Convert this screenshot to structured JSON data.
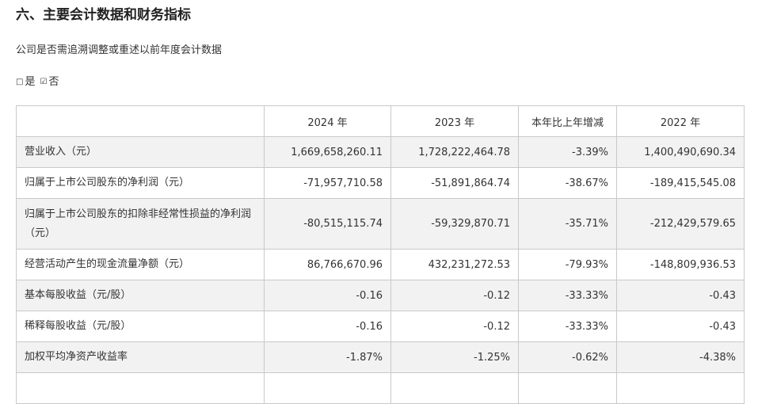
{
  "section_title": "六、主要会计数据和财务指标",
  "restate_question": "公司是否需追溯调整或重述以前年度会计数据",
  "options": {
    "yes_box": "□",
    "yes": "是",
    "no_box": "☑",
    "no": "否"
  },
  "table": {
    "headers": [
      "",
      "2024 年",
      "2023 年",
      "本年比上年增减",
      "2022 年"
    ],
    "rows": [
      [
        "营业收入（元）",
        "1,669,658,260.11",
        "1,728,222,464.78",
        "-3.39%",
        "1,400,490,690.34"
      ],
      [
        "归属于上市公司股东的净利润（元）",
        "-71,957,710.58",
        "-51,891,864.74",
        "-38.67%",
        "-189,415,545.08"
      ],
      [
        "归属于上市公司股东的扣除非经常性损益的净利润（元）",
        "-80,515,115.74",
        "-59,329,870.71",
        "-35.71%",
        "-212,429,579.65"
      ],
      [
        "经营活动产生的现金流量净额（元）",
        "86,766,670.96",
        "432,231,272.53",
        "-79.93%",
        "-148,809,936.53"
      ],
      [
        "基本每股收益（元/股）",
        "-0.16",
        "-0.12",
        "-33.33%",
        "-0.43"
      ],
      [
        "稀释每股收益（元/股）",
        "-0.16",
        "-0.12",
        "-33.33%",
        "-0.43"
      ],
      [
        "加权平均净资产收益率",
        "-1.87%",
        "-1.25%",
        "-0.62%",
        "-4.38%"
      ]
    ]
  }
}
